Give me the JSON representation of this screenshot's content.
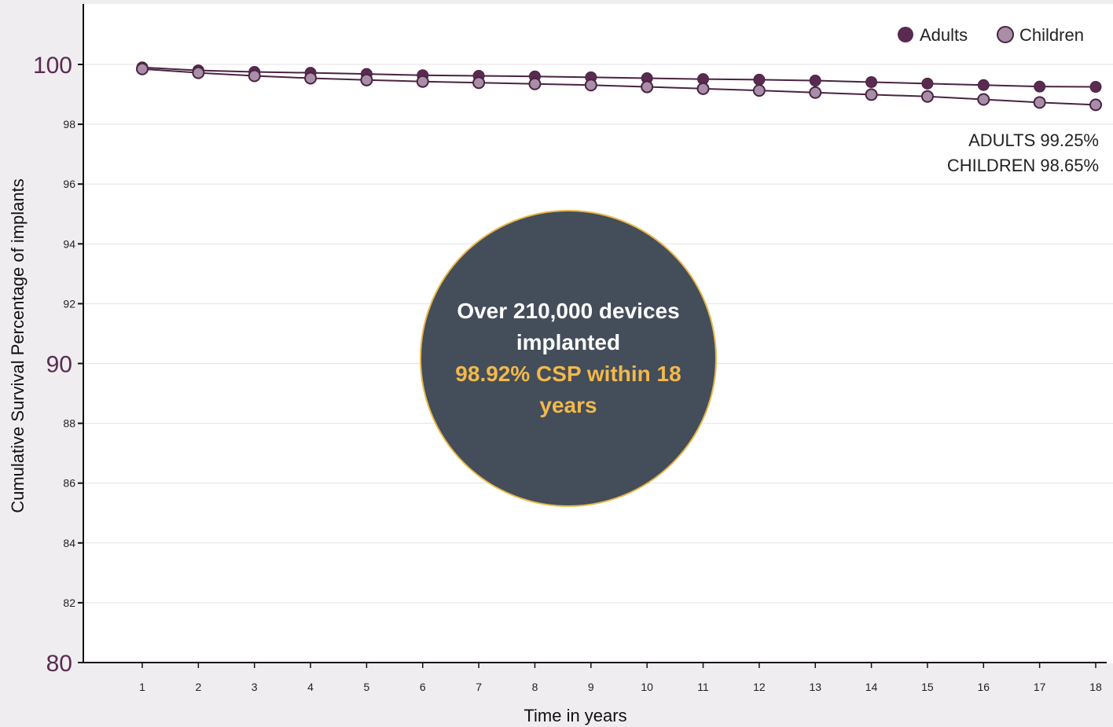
{
  "chart_data": {
    "type": "line",
    "xlabel": "Time in years",
    "ylabel": "Cumulative Survival Percentage of implants",
    "x": [
      1,
      2,
      3,
      4,
      5,
      6,
      7,
      8,
      9,
      10,
      11,
      12,
      13,
      14,
      15,
      16,
      17,
      18
    ],
    "ylim": [
      80,
      102
    ],
    "yticks_major": [
      80,
      90,
      100
    ],
    "yticks_minor": [
      82,
      84,
      86,
      88,
      92,
      94,
      96,
      98
    ],
    "grid": true,
    "legend_position": "top-right",
    "series": [
      {
        "name": "Adults",
        "color": "#5a2a50",
        "values": [
          99.9,
          99.8,
          99.75,
          99.72,
          99.68,
          99.64,
          99.62,
          99.6,
          99.57,
          99.54,
          99.51,
          99.49,
          99.46,
          99.41,
          99.36,
          99.31,
          99.26,
          99.25
        ]
      },
      {
        "name": "Children",
        "color": "#a88ea6",
        "values": [
          99.85,
          99.72,
          99.62,
          99.54,
          99.48,
          99.43,
          99.39,
          99.35,
          99.31,
          99.25,
          99.19,
          99.13,
          99.06,
          98.99,
          98.93,
          98.83,
          98.73,
          98.65
        ]
      }
    ],
    "annotations": [
      "ADULTS 99.25%",
      "CHILDREN 98.65%"
    ]
  },
  "callout": {
    "line1": "Over 210,000 devices implanted",
    "line2": "98.92% CSP within 18 years"
  }
}
